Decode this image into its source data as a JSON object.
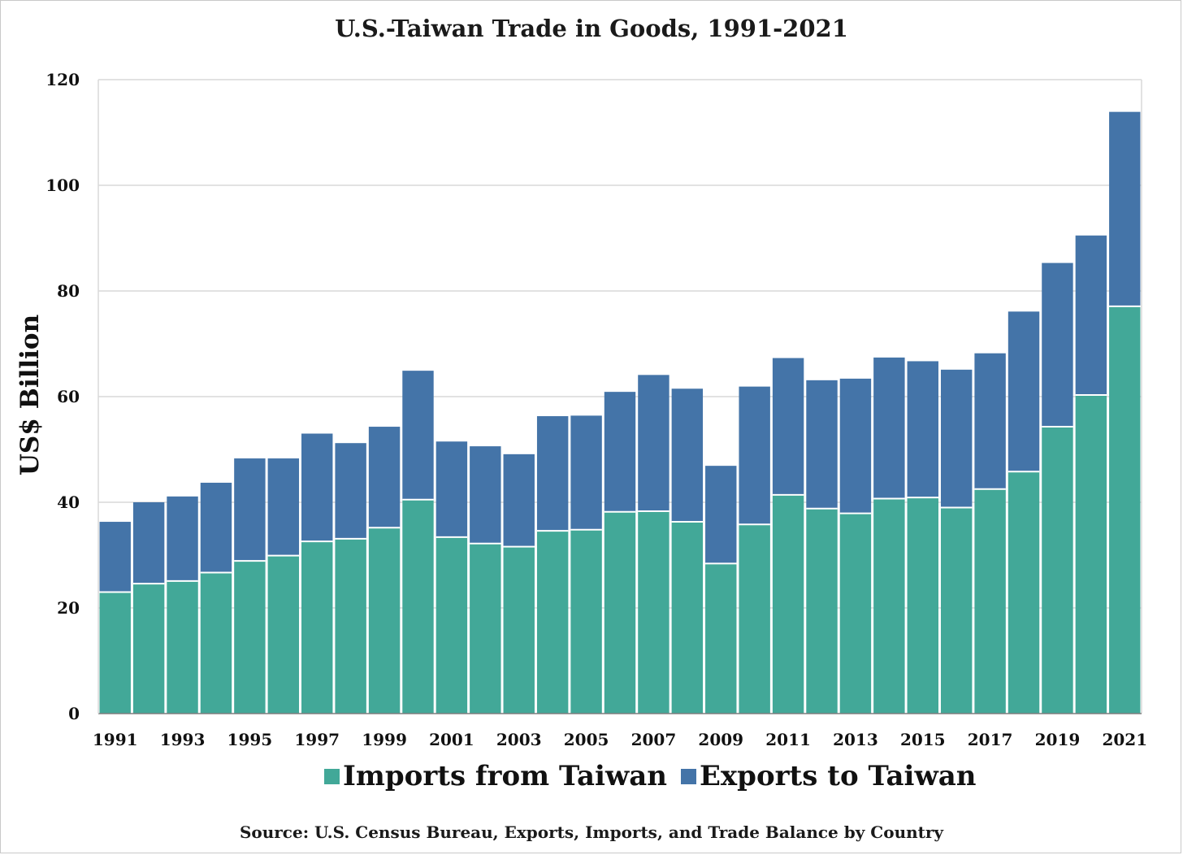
{
  "title": "U.S.-Taiwan Trade in Goods, 1991-2021",
  "source": "Source: U.S. Census Bureau, Exports, Imports, and Trade Balance by Country",
  "colors": {
    "imports": "#42a898",
    "exports": "#4474a8",
    "grid": "#d9d9d9"
  },
  "chart_data": {
    "type": "bar",
    "stacked": true,
    "title": "U.S.-Taiwan Trade in Goods, 1991-2021",
    "xlabel": "",
    "ylabel": "US$ Billion",
    "ylim": [
      0,
      120
    ],
    "yticks": [
      0,
      20,
      40,
      60,
      80,
      100,
      120
    ],
    "grid": true,
    "legend": "bottom",
    "categories": [
      "1991",
      "1992",
      "1993",
      "1994",
      "1995",
      "1996",
      "1997",
      "1998",
      "1999",
      "2000",
      "2001",
      "2002",
      "2003",
      "2004",
      "2005",
      "2006",
      "2007",
      "2008",
      "2009",
      "2010",
      "2011",
      "2012",
      "2013",
      "2014",
      "2015",
      "2016",
      "2017",
      "2018",
      "2019",
      "2020",
      "2021"
    ],
    "xtick_labels": [
      "1991",
      "1993",
      "1995",
      "1997",
      "1999",
      "2001",
      "2003",
      "2005",
      "2007",
      "2009",
      "2011",
      "2013",
      "2015",
      "2017",
      "2019",
      "2021"
    ],
    "series": [
      {
        "name": "Imports from Taiwan",
        "values": [
          23.0,
          24.6,
          25.1,
          26.7,
          28.9,
          29.9,
          32.6,
          33.1,
          35.2,
          40.5,
          33.4,
          32.2,
          31.6,
          34.6,
          34.8,
          38.2,
          38.3,
          36.3,
          28.4,
          35.8,
          41.4,
          38.8,
          37.9,
          40.7,
          40.9,
          39.0,
          42.5,
          45.8,
          54.3,
          60.3,
          77.1
        ]
      },
      {
        "name": "Exports to Taiwan",
        "values": [
          13.3,
          15.4,
          16.0,
          17.0,
          19.4,
          18.4,
          20.4,
          18.1,
          19.1,
          24.4,
          18.1,
          18.4,
          17.5,
          21.7,
          21.6,
          22.7,
          25.8,
          25.2,
          18.5,
          26.1,
          25.9,
          24.3,
          25.5,
          26.7,
          25.8,
          26.1,
          25.7,
          30.3,
          31.0,
          30.2,
          36.8
        ]
      }
    ]
  }
}
